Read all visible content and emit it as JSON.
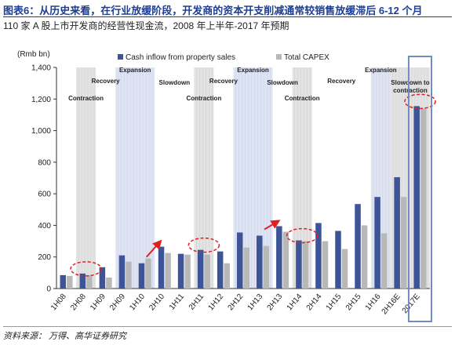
{
  "header": {
    "title": "图表6：从历史来看，在行业放缓阶段，开发商的资本开支削减通常较销售放缓滞后 6-12 个月",
    "subtitle": "110 家 A 股上市开发商的经营性现金流，2008 年上半年-2017 年预期"
  },
  "footer": {
    "source": "资料来源：  万得、高华证券研究"
  },
  "colors": {
    "cash": "#3d5596",
    "capex": "#b8b8b8",
    "shade_gray": "#e3e3e3",
    "shade_blue": "#dfe4f2",
    "circle": "#e02020",
    "arrow": "#e02020",
    "box": "#6f8cc4"
  },
  "chart_data": {
    "type": "bar",
    "ylabel": "(Rmb bn)",
    "ylim": [
      0,
      1400
    ],
    "yticks": [
      "0",
      "200",
      "400",
      "600",
      "800",
      "1,000",
      "1,200",
      "1,400"
    ],
    "ytick_values": [
      0,
      200,
      400,
      600,
      800,
      1000,
      1200,
      1400
    ],
    "categories": [
      "1H08",
      "2H08",
      "1H09",
      "2H09",
      "1H10",
      "2H10",
      "1H11",
      "2H11",
      "1H12",
      "2H12",
      "1H13",
      "2H13",
      "1H14",
      "2H14",
      "1H15",
      "2H15",
      "1H16",
      "2H16E",
      "2017E"
    ],
    "series": [
      {
        "name": "Cash inflow from property sales",
        "values": [
          85,
          95,
          135,
          210,
          160,
          265,
          220,
          245,
          235,
          355,
          335,
          395,
          305,
          415,
          365,
          535,
          580,
          705,
          1155
        ]
      },
      {
        "name": "Total CAPEX",
        "values": [
          80,
          85,
          70,
          170,
          190,
          225,
          215,
          215,
          160,
          260,
          270,
          360,
          300,
          300,
          250,
          400,
          350,
          580,
          1140
        ]
      }
    ],
    "phases": [
      {
        "label": "Contraction",
        "start": 1,
        "end": 1,
        "shade": "gray"
      },
      {
        "label": "Recovery",
        "start": 2,
        "end": 2,
        "shade": "none"
      },
      {
        "label": "Expansion",
        "start": 3,
        "end": 4,
        "shade": "blue"
      },
      {
        "label": "Slowdown",
        "start": 5,
        "end": 6,
        "shade": "none"
      },
      {
        "label": "Contraction",
        "start": 7,
        "end": 7,
        "shade": "gray"
      },
      {
        "label": "Recovery",
        "start": 8,
        "end": 8,
        "shade": "none"
      },
      {
        "label": "Expansion",
        "start": 9,
        "end": 10,
        "shade": "blue"
      },
      {
        "label": "Slowdown",
        "start": 11,
        "end": 11,
        "shade": "none"
      },
      {
        "label": "Contraction",
        "start": 12,
        "end": 12,
        "shade": "gray"
      },
      {
        "label": "Recovery",
        "start": 13,
        "end": 15,
        "shade": "none"
      },
      {
        "label": "Expansion",
        "start": 16,
        "end": 16,
        "shade": "blue"
      },
      {
        "label": "Slowdown to",
        "label2": "contraction",
        "start": 17,
        "end": 18,
        "shade": "gray"
      }
    ],
    "circled_categories": [
      "2H08",
      "2H11",
      "1H14",
      "2017E"
    ],
    "arrows": [
      [
        "2H10",
        "2H10"
      ],
      [
        "1H13",
        "2H13"
      ]
    ],
    "highlight_box_category": "2017E",
    "legend_placement": "top"
  }
}
